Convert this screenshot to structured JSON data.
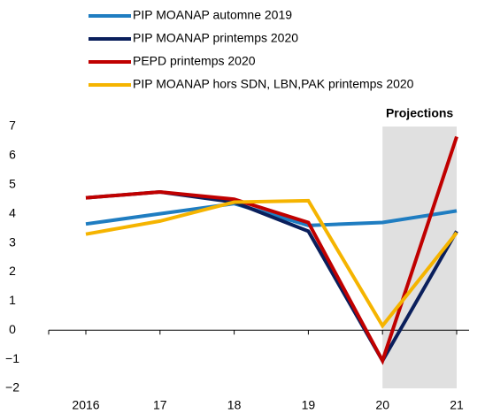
{
  "chart_data": {
    "type": "line",
    "categories": [
      "2016",
      "17",
      "18",
      "19",
      "20",
      "21"
    ],
    "series": [
      {
        "name": "PIP MOANAP automne 2019",
        "color": "#1f7dc1",
        "values": [
          3.65,
          4.0,
          4.35,
          3.6,
          3.7,
          4.1
        ]
      },
      {
        "name": "PIP MOANAP printemps 2020",
        "color": "#0a1f5c",
        "values": [
          4.55,
          4.75,
          4.4,
          3.4,
          -1.05,
          3.4
        ]
      },
      {
        "name": "PEPD printemps 2020",
        "color": "#c00000",
        "values": [
          4.55,
          4.75,
          4.5,
          3.7,
          -1.05,
          6.65
        ]
      },
      {
        "name": "PIP MOANAP hors SDN, LBN,PAK printemps  2020",
        "color": "#f5b400",
        "values": [
          3.3,
          3.75,
          4.4,
          4.45,
          0.15,
          3.35
        ]
      }
    ],
    "ylim": [
      -2,
      7
    ],
    "yticks": [
      {
        "value": -2,
        "label": "−2"
      },
      {
        "value": -1,
        "label": "−1"
      },
      0,
      1,
      2,
      3,
      4,
      5,
      6,
      7
    ],
    "annotation": "Projections"
  }
}
